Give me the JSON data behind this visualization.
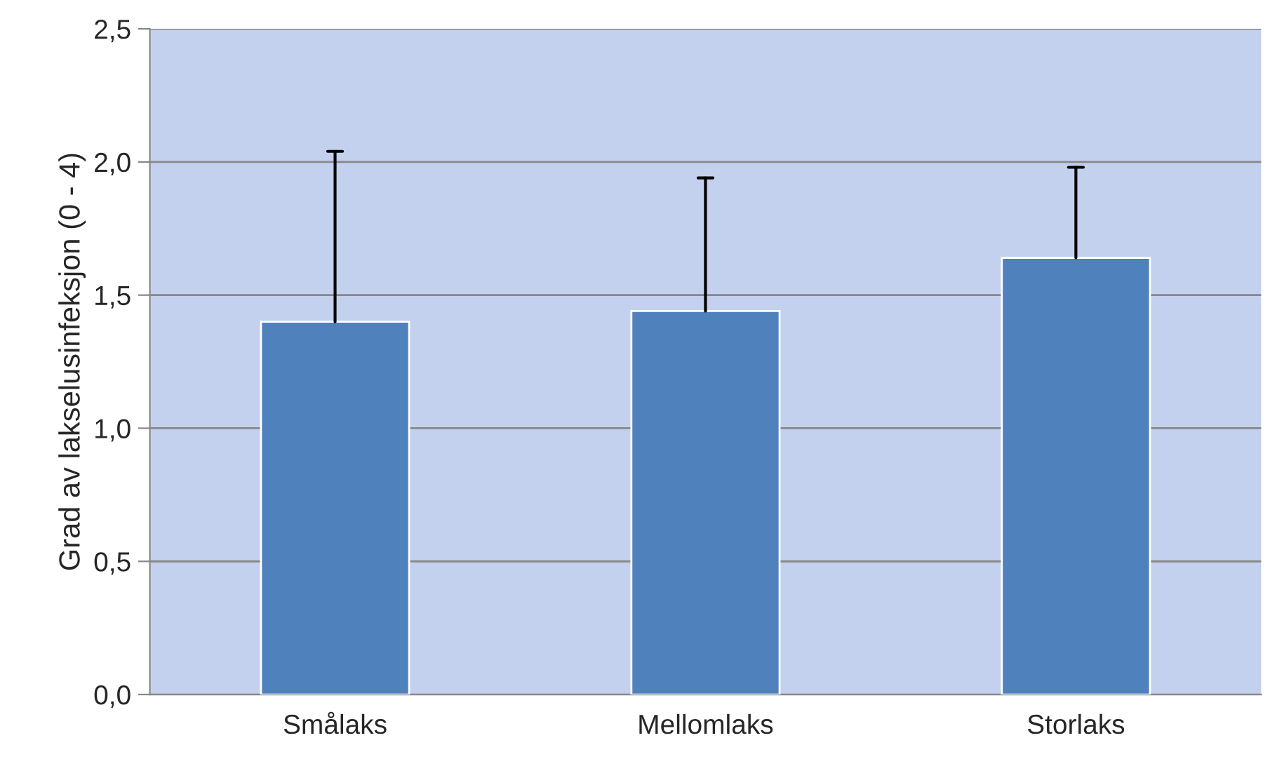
{
  "chart_data": {
    "type": "bar",
    "ylabel": "Grad av lakselusinfeksjon (0 - 4)",
    "categories": [
      "Smålaks",
      "Mellomlaks",
      "Storlaks"
    ],
    "values": [
      1.4,
      1.44,
      1.64
    ],
    "errors": [
      [
        1.4,
        2.04
      ],
      [
        1.44,
        1.94
      ],
      [
        1.64,
        1.98
      ]
    ],
    "color": "#4f81bd",
    "ylim": [
      0,
      2.5
    ],
    "yticks": [
      {
        "value": 0,
        "label": "0,0"
      },
      {
        "value": 0.5,
        "label": "0,5"
      },
      {
        "value": 1.0,
        "label": "1,0"
      },
      {
        "value": 1.5,
        "label": "1,5"
      },
      {
        "value": 2.0,
        "label": "2,0"
      },
      {
        "value": 2.5,
        "label": "2,5"
      }
    ],
    "grid": "y",
    "legend": false
  }
}
